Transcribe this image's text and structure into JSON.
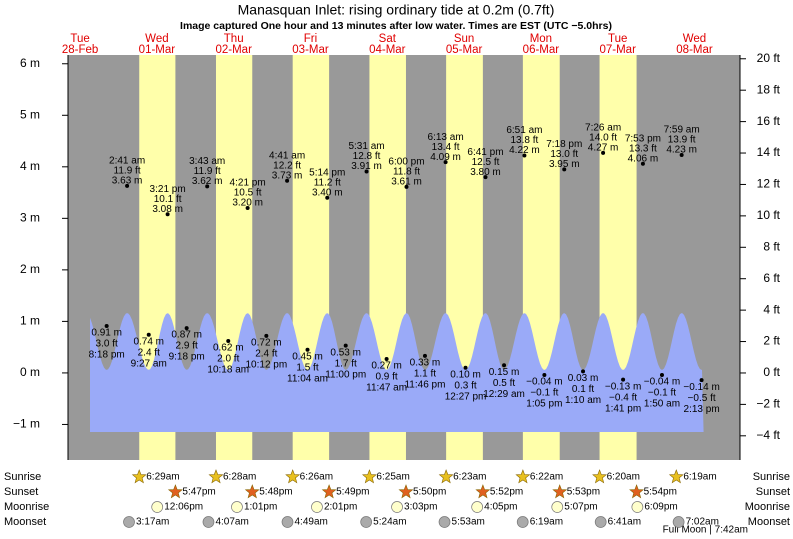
{
  "header": {
    "title": "Manasquan Inlet: rising  ordinary tide at 0.2m (0.7ft)",
    "subtitle": "Image captured One hour and 13 minutes after low water. Times are EST (UTC −5.0hrs)"
  },
  "chart_data": {
    "type": "tide",
    "ylim": [
      -1.69,
      6.17
    ],
    "yticks": [
      {
        "value": 6,
        "label": "6 m"
      },
      {
        "value": 5,
        "label": "5 m"
      },
      {
        "value": 4,
        "label": "4 m"
      },
      {
        "value": 3,
        "label": "3 m"
      },
      {
        "value": 2,
        "label": "2 m"
      },
      {
        "value": 1,
        "label": "1 m"
      },
      {
        "value": 0,
        "label": "0 m"
      },
      {
        "value": -1,
        "label": "−1 m"
      }
    ],
    "y2lim": [
      -5.54,
      20.24
    ],
    "y2ticks": [
      {
        "value": 20,
        "label": "20 ft"
      },
      {
        "value": 18,
        "label": "18 ft"
      },
      {
        "value": 16,
        "label": "16 ft"
      },
      {
        "value": 14,
        "label": "14 ft"
      },
      {
        "value": 12,
        "label": "12 ft"
      },
      {
        "value": 10,
        "label": "10 ft"
      },
      {
        "value": 8,
        "label": "8 ft"
      },
      {
        "value": 6,
        "label": "6 ft"
      },
      {
        "value": 4,
        "label": "4 ft"
      },
      {
        "value": 2,
        "label": "2 ft"
      },
      {
        "value": 0,
        "label": "0 ft"
      },
      {
        "value": -2,
        "label": "−2 ft"
      },
      {
        "value": -4,
        "label": "−4 ft"
      }
    ],
    "row_labels": [
      "Sunrise",
      "Sunset",
      "Moonrise",
      "Moonset"
    ],
    "note": "Full Moon | 7:42am",
    "days": [
      {
        "weekday": "Tue",
        "date": "28-Feb",
        "tides": [
          {
            "time": "8:18 pm",
            "height": 0.91,
            "height_label": "0.91 m",
            "ft": 3.0,
            "ft_label": "3.0 ft"
          }
        ]
      },
      {
        "weekday": "Wed",
        "date": "01-Mar",
        "sunrise": "6:29am",
        "sunset": "5:47pm",
        "moonrise": "12:06pm",
        "moonset": "3:17am",
        "tides": [
          {
            "time": "2:41 am",
            "height": 3.63,
            "height_label": "3.63 m",
            "ft": 11.9,
            "ft_label": "11.9 ft"
          },
          {
            "time": "9:27 am",
            "height": 0.74,
            "height_label": "0.74 m",
            "ft": 2.4,
            "ft_label": "2.4 ft"
          },
          {
            "time": "3:21 pm",
            "height": 3.08,
            "height_label": "3.08 m",
            "ft": 10.1,
            "ft_label": "10.1 ft"
          },
          {
            "time": "9:18 pm",
            "height": 0.87,
            "height_label": "0.87 m",
            "ft": 2.9,
            "ft_label": "2.9 ft"
          }
        ]
      },
      {
        "weekday": "Thu",
        "date": "02-Mar",
        "sunrise": "6:28am",
        "sunset": "5:48pm",
        "moonrise": "1:01pm",
        "moonset": "4:07am",
        "tides": [
          {
            "time": "3:43 am",
            "height": 3.62,
            "height_label": "3.62 m",
            "ft": 11.9,
            "ft_label": "11.9 ft"
          },
          {
            "time": "10:18 am",
            "height": 0.62,
            "height_label": "0.62 m",
            "ft": 2.0,
            "ft_label": "2.0 ft"
          },
          {
            "time": "4:21 pm",
            "height": 3.2,
            "height_label": "3.20 m",
            "ft": 10.5,
            "ft_label": "10.5 ft"
          },
          {
            "time": "10:12 pm",
            "height": 0.72,
            "height_label": "0.72 m",
            "ft": 2.4,
            "ft_label": "2.4 ft"
          }
        ]
      },
      {
        "weekday": "Fri",
        "date": "03-Mar",
        "sunrise": "6:26am",
        "sunset": "5:49pm",
        "moonrise": "2:01pm",
        "moonset": "4:49am",
        "tides": [
          {
            "time": "4:41 am",
            "height": 3.73,
            "height_label": "3.73 m",
            "ft": 12.2,
            "ft_label": "12.2 ft"
          },
          {
            "time": "11:04 am",
            "height": 0.45,
            "height_label": "0.45 m",
            "ft": 1.5,
            "ft_label": "1.5 ft"
          },
          {
            "time": "5:14 pm",
            "height": 3.4,
            "height_label": "3.40 m",
            "ft": 11.2,
            "ft_label": "11.2 ft"
          },
          {
            "time": "11:00 pm",
            "height": 0.53,
            "height_label": "0.53 m",
            "ft": 1.7,
            "ft_label": "1.7 ft"
          }
        ]
      },
      {
        "weekday": "Sat",
        "date": "04-Mar",
        "sunrise": "6:25am",
        "sunset": "5:50pm",
        "moonrise": "3:03pm",
        "moonset": "5:24am",
        "tides": [
          {
            "time": "5:31 am",
            "height": 3.91,
            "height_label": "3.91 m",
            "ft": 12.8,
            "ft_label": "12.8 ft"
          },
          {
            "time": "11:47 am",
            "height": 0.27,
            "height_label": "0.27 m",
            "ft": 0.9,
            "ft_label": "0.9 ft"
          },
          {
            "time": "6:00 pm",
            "height": 3.61,
            "height_label": "3.61 m",
            "ft": 11.8,
            "ft_label": "11.8 ft"
          },
          {
            "time": "11:46 pm",
            "height": 0.33,
            "height_label": "0.33 m",
            "ft": 1.1,
            "ft_label": "1.1 ft"
          }
        ]
      },
      {
        "weekday": "Sun",
        "date": "05-Mar",
        "sunrise": "6:23am",
        "sunset": "5:52pm",
        "moonrise": "4:05pm",
        "moonset": "5:53am",
        "tides": [
          {
            "time": "6:13 am",
            "height": 4.09,
            "height_label": "4.09 m",
            "ft": 13.4,
            "ft_label": "13.4 ft"
          },
          {
            "time": "12:27 pm",
            "height": 0.1,
            "height_label": "0.10 m",
            "ft": 0.3,
            "ft_label": "0.3 ft"
          },
          {
            "time": "6:41 pm",
            "height": 3.8,
            "height_label": "3.80 m",
            "ft": 12.5,
            "ft_label": "12.5 ft"
          }
        ]
      },
      {
        "weekday": "Mon",
        "date": "06-Mar",
        "sunrise": "6:22am",
        "sunset": "5:53pm",
        "moonrise": "5:07pm",
        "moonset": "6:19am",
        "tides": [
          {
            "time": "12:29 am",
            "height": 0.15,
            "height_label": "0.15 m",
            "ft": 0.5,
            "ft_label": "0.5 ft"
          },
          {
            "time": "6:51 am",
            "height": 4.22,
            "height_label": "4.22 m",
            "ft": 13.8,
            "ft_label": "13.8 ft"
          },
          {
            "time": "1:05 pm",
            "height": -0.04,
            "height_label": "−0.04 m",
            "ft": -0.1,
            "ft_label": "−0.1 ft"
          },
          {
            "time": "7:18 pm",
            "height": 3.95,
            "height_label": "3.95 m",
            "ft": 13.0,
            "ft_label": "13.0 ft"
          }
        ]
      },
      {
        "weekday": "Tue",
        "date": "07-Mar",
        "sunrise": "6:20am",
        "sunset": "5:54pm",
        "moonrise": "6:09pm",
        "moonset": "6:41am",
        "tides": [
          {
            "time": "1:10 am",
            "height": 0.03,
            "height_label": "0.03 m",
            "ft": 0.1,
            "ft_label": "0.1 ft"
          },
          {
            "time": "7:26 am",
            "height": 4.27,
            "height_label": "4.27 m",
            "ft": 14.0,
            "ft_label": "14.0 ft"
          },
          {
            "time": "1:41 pm",
            "height": -0.13,
            "height_label": "−0.13 m",
            "ft": -0.4,
            "ft_label": "−0.4 ft"
          },
          {
            "time": "7:53 pm",
            "height": 4.06,
            "height_label": "4.06 m",
            "ft": 13.3,
            "ft_label": "13.3 ft"
          }
        ]
      },
      {
        "weekday": "Wed",
        "date": "08-Mar",
        "sunrise": "6:19am",
        "moonset": "7:02am",
        "tides": [
          {
            "time": "1:50 am",
            "height": -0.04,
            "height_label": "−0.04 m",
            "ft": -0.1,
            "ft_label": "−0.1 ft"
          },
          {
            "time": "7:59 am",
            "height": 4.23,
            "height_label": "4.23 m",
            "ft": 13.9,
            "ft_label": "13.9 ft"
          },
          {
            "time": "2:13 pm",
            "height": -0.14,
            "height_label": "−0.14 m",
            "ft": -0.5,
            "ft_label": "−0.5 ft"
          }
        ]
      }
    ]
  }
}
